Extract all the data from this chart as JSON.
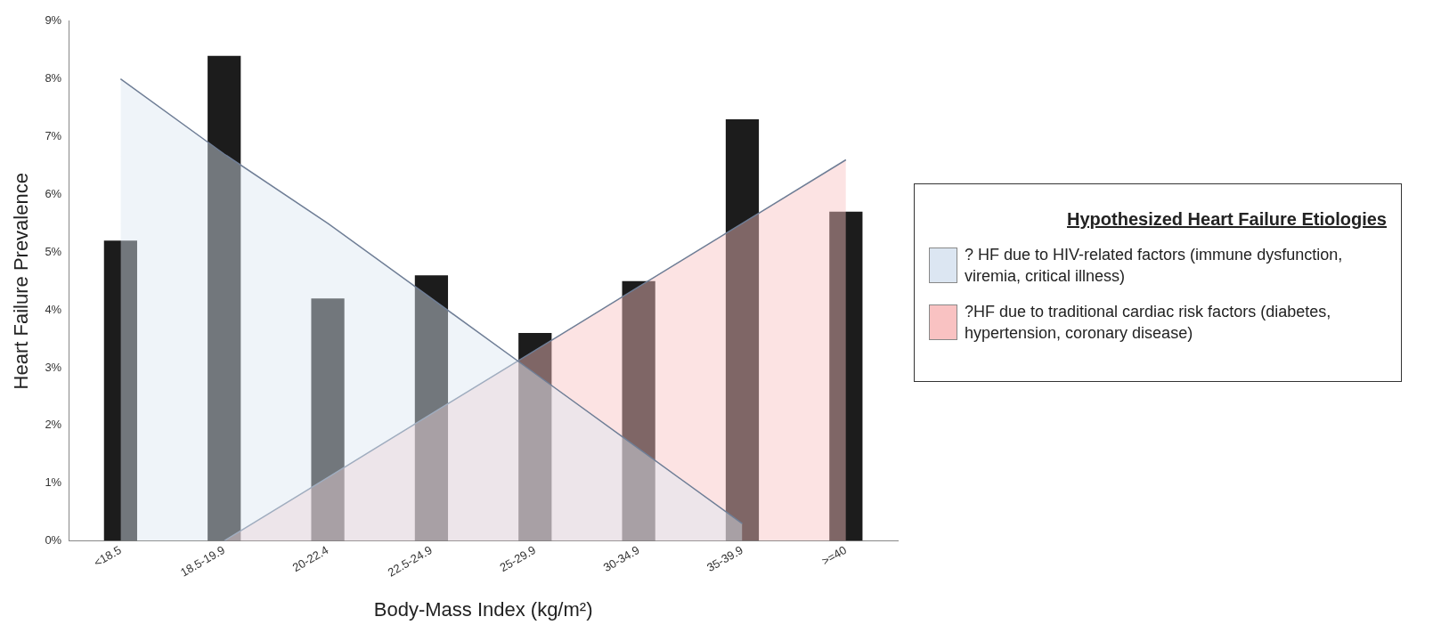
{
  "chart_data": {
    "type": "bar",
    "xlabel": "Body-Mass Index (kg/m²)",
    "ylabel": "Heart Failure Prevalence",
    "legend_title": "Hypothesized Heart Failure Etiologies",
    "categories": [
      "<18.5",
      "18.5-19.9",
      "20-22.4",
      "22.5-24.9",
      "25-29.9",
      "30-34.9",
      "35-39.9",
      ">=40"
    ],
    "series": [
      {
        "color": "#1c1c1c",
        "values": [
          5.2,
          8.4,
          4.2,
          4.6,
          3.6,
          4.5,
          7.3,
          5.7
        ]
      },
      {
        "type": "area",
        "name": "? HF due to HIV-related factors (immune dysfunction, viremia, critical illness)",
        "color": "#dce6f2",
        "values": [
          8.0,
          6.7,
          5.5,
          4.2,
          2.9,
          1.6,
          0.3,
          null
        ]
      },
      {
        "type": "area",
        "name": "?HF due to traditional cardiac risk factors (diabetes, hypertension, coronary disease)",
        "color": "#f9c2c2",
        "values": [
          null,
          0,
          1.1,
          2.2,
          3.3,
          4.4,
          5.5,
          6.6
        ]
      }
    ],
    "ylim": [
      0,
      9
    ],
    "yticks": [
      {
        "value": 0,
        "label": "0%"
      },
      {
        "value": 1,
        "label": "1%"
      },
      {
        "value": 2,
        "label": "2%"
      },
      {
        "value": 3,
        "label": "3%"
      },
      {
        "value": 4,
        "label": "4%"
      },
      {
        "value": 5,
        "label": "5%"
      },
      {
        "value": 6,
        "label": "6%"
      },
      {
        "value": 7,
        "label": "7%"
      },
      {
        "value": 8,
        "label": "8%"
      },
      {
        "value": 9,
        "label": "9%"
      }
    ],
    "grid": false,
    "legend": "right"
  }
}
